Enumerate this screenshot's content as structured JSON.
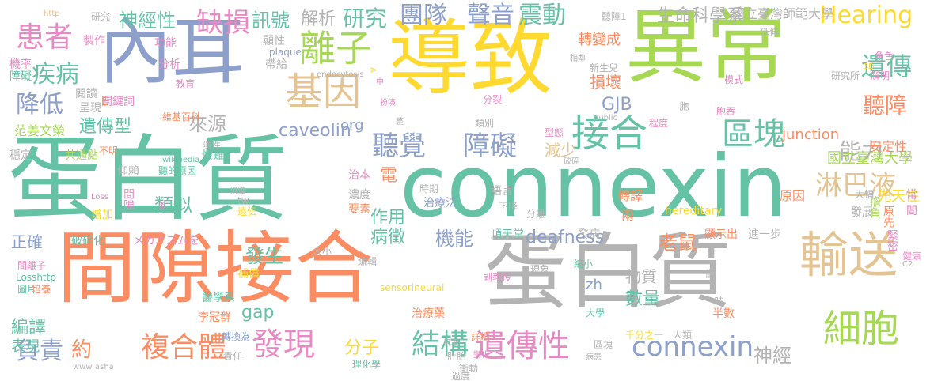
{
  "palette": {
    "green": "#66c2a5",
    "orange": "#fc8d62",
    "blue": "#8da0cb",
    "pink": "#e78ac3",
    "lime": "#a6d854",
    "yellow": "#ffd92f",
    "tan": "#e5c494",
    "gray": "#b3b3b3"
  },
  "words": [
    {
      "text": "蛋白質",
      "color": "green"
    },
    {
      "text": "connexin",
      "color": "green"
    },
    {
      "text": "蛋白質",
      "color": "gray"
    },
    {
      "text": "間隙接合",
      "color": "orange"
    },
    {
      "text": "導致",
      "color": "yellow"
    },
    {
      "text": "異常",
      "color": "lime"
    },
    {
      "text": "內耳",
      "color": "blue"
    },
    {
      "text": "輸送",
      "color": "tan"
    },
    {
      "text": "細胞",
      "color": "lime"
    },
    {
      "text": "接合",
      "color": "green"
    },
    {
      "text": "區塊",
      "color": "green"
    },
    {
      "text": "基因",
      "color": "tan"
    },
    {
      "text": "離子",
      "color": "lime"
    },
    {
      "text": "聽覺",
      "color": "blue"
    },
    {
      "text": "障礙",
      "color": "blue"
    },
    {
      "text": "發現",
      "color": "pink"
    },
    {
      "text": "結構",
      "color": "green"
    },
    {
      "text": "遺傳性",
      "color": "pink"
    },
    {
      "text": "複合體",
      "color": "orange"
    },
    {
      "text": "connexin",
      "color": "blue"
    },
    {
      "text": "患者",
      "color": "pink"
    },
    {
      "text": "缺損",
      "color": "pink"
    },
    {
      "text": "淋巴液",
      "color": "tan"
    },
    {
      "text": "Hearing",
      "color": "yellow"
    },
    {
      "text": "遺傳",
      "color": "green"
    },
    {
      "text": "聽障",
      "color": "orange"
    },
    {
      "text": "能力",
      "color": "gray"
    },
    {
      "text": "疾病",
      "color": "green"
    },
    {
      "text": "降低",
      "color": "blue"
    },
    {
      "text": "團隊",
      "color": "blue"
    },
    {
      "text": "聲音",
      "color": "blue"
    },
    {
      "text": "震動",
      "color": "green"
    },
    {
      "text": "研究",
      "color": "green"
    },
    {
      "text": "神經性",
      "color": "green"
    },
    {
      "text": "訊號",
      "color": "green"
    },
    {
      "text": "解析",
      "color": "gray"
    },
    {
      "text": "生命科學系",
      "color": "gray"
    },
    {
      "text": "來源",
      "color": "gray"
    },
    {
      "text": "遺傳型",
      "color": "green"
    },
    {
      "text": "caveolin",
      "color": "blue"
    },
    {
      "text": "GJB",
      "color": "blue"
    },
    {
      "text": "正確",
      "color": "blue"
    },
    {
      "text": "類似",
      "color": "green"
    },
    {
      "text": "負責",
      "color": "blue"
    },
    {
      "text": "約",
      "color": "orange"
    },
    {
      "text": "機能",
      "color": "blue"
    },
    {
      "text": "病徵",
      "color": "green"
    },
    {
      "text": "作用",
      "color": "green"
    },
    {
      "text": "分子",
      "color": "yellow"
    },
    {
      "text": "deafness",
      "color": "blue"
    },
    {
      "text": "老鼠",
      "color": "orange"
    },
    {
      "text": "神經",
      "color": "gray"
    },
    {
      "text": "數量",
      "color": "green"
    },
    {
      "text": "物質",
      "color": "gray"
    },
    {
      "text": "發生",
      "color": "green"
    },
    {
      "text": "gap",
      "color": "green"
    },
    {
      "text": "電",
      "color": "orange"
    },
    {
      "text": "junction",
      "color": "orange"
    },
    {
      "text": "轉變成",
      "color": "orange"
    },
    {
      "text": "損壞",
      "color": "orange"
    },
    {
      "text": "減少",
      "color": "tan"
    },
    {
      "text": "編譯",
      "color": "green"
    },
    {
      "text": "表現",
      "color": "green"
    },
    {
      "text": "org",
      "color": "blue"
    },
    {
      "text": "zh",
      "color": "blue"
    },
    {
      "text": "國立臺灣大學",
      "color": "lime"
    },
    {
      "text": "國立臺灣師範大學",
      "color": "gray"
    },
    {
      "text": "先天性",
      "color": "yellow"
    },
    {
      "text": "安定性",
      "color": "orange"
    },
    {
      "text": "轉譯",
      "color": "orange"
    },
    {
      "text": "兩",
      "color": "orange"
    },
    {
      "text": "原因",
      "color": "orange"
    },
    {
      "text": "hereditary",
      "color": "yellow"
    },
    {
      "text": "顯示出",
      "color": "orange"
    },
    {
      "text": "進一步",
      "color": "gray"
    },
    {
      "text": "擔負",
      "color": "lime"
    },
    {
      "text": "原先",
      "color": "orange"
    },
    {
      "text": "發展",
      "color": "gray"
    },
    {
      "text": "緊密",
      "color": "pink"
    },
    {
      "text": "順天堂",
      "color": "green"
    },
    {
      "text": "發病",
      "color": "gray"
    },
    {
      "text": "大學",
      "color": "green"
    },
    {
      "text": "李冠群",
      "color": "orange"
    },
    {
      "text": "醫學系",
      "color": "green"
    },
    {
      "text": "補償",
      "color": "yellow"
    },
    {
      "text": "治療藥",
      "color": "orange"
    },
    {
      "text": "治療法",
      "color": "blue"
    },
    {
      "text": "語言",
      "color": "gray"
    },
    {
      "text": "濃度",
      "color": "gray"
    },
    {
      "text": "要素",
      "color": "orange"
    },
    {
      "text": "治本",
      "color": "pink"
    },
    {
      "text": "聽的原因",
      "color": "green"
    },
    {
      "text": "wikipedia",
      "color": "green"
    },
    {
      "text": "メカニズムを",
      "color": "pink"
    },
    {
      "text": "破碎化",
      "color": "green"
    },
    {
      "text": "間隙",
      "color": "pink"
    },
    {
      "text": "增加",
      "color": "yellow"
    },
    {
      "text": "Loss",
      "color": "pink"
    },
    {
      "text": "仰賴",
      "color": "gray"
    },
    {
      "text": "共通點",
      "color": "lime"
    },
    {
      "text": "性難",
      "color": "green"
    },
    {
      "text": "隱性",
      "color": "gray"
    },
    {
      "text": "維基百科",
      "color": "orange"
    },
    {
      "text": "范姜文榮",
      "color": "lime"
    },
    {
      "text": "呈現",
      "color": "gray"
    },
    {
      "text": "關鍵詞",
      "color": "pink"
    },
    {
      "text": "閱讀",
      "color": "gray"
    },
    {
      "text": "教育",
      "color": "pink"
    },
    {
      "text": "機率",
      "color": "pink"
    },
    {
      "text": "障礙",
      "color": "green"
    },
    {
      "text": "分析",
      "color": "pink"
    },
    {
      "text": "功能",
      "color": "pink"
    },
    {
      "text": "製作",
      "color": "pink"
    },
    {
      "text": "http",
      "color": "tan"
    },
    {
      "text": "研究",
      "color": "gray"
    },
    {
      "text": "顯性",
      "color": "gray"
    },
    {
      "text": "帶給",
      "color": "gray"
    },
    {
      "text": "plaque",
      "color": "blue"
    },
    {
      "text": "endocytosis",
      "color": "gray"
    },
    {
      "text": "A",
      "color": "yellow"
    },
    {
      "text": "中",
      "color": "pink"
    },
    {
      "text": "扮演",
      "color": "pink"
    },
    {
      "text": "整",
      "color": "gray"
    },
    {
      "text": "分裂",
      "color": "pink"
    },
    {
      "text": "類別",
      "color": "gray"
    },
    {
      "text": "型態",
      "color": "pink"
    },
    {
      "text": "public",
      "color": "gray"
    },
    {
      "text": "程度",
      "color": "pink"
    },
    {
      "text": "胞",
      "color": "gray"
    },
    {
      "text": "胞吞",
      "color": "pink"
    },
    {
      "text": "模式",
      "color": "pink"
    },
    {
      "text": "研究所",
      "color": "gray"
    },
    {
      "text": "解明",
      "color": "pink"
    },
    {
      "text": "BD",
      "color": "yellow"
    },
    {
      "text": "角色",
      "color": "pink"
    },
    {
      "text": "延伸",
      "color": "gray"
    },
    {
      "text": "聽障1",
      "color": "gray"
    },
    {
      "text": "相鄰",
      "color": "gray"
    },
    {
      "text": "新生兒",
      "color": "gray"
    },
    {
      "text": "破碎",
      "color": "gray"
    },
    {
      "text": "時期",
      "color": "gray"
    },
    {
      "text": "下降",
      "color": "gray"
    },
    {
      "text": "分離",
      "color": "gray"
    },
    {
      "text": "大幅",
      "color": "gray"
    },
    {
      "text": "常",
      "color": "pink"
    },
    {
      "text": "間",
      "color": "pink"
    },
    {
      "text": "sensorineural",
      "color": "yellow"
    },
    {
      "text": "副教授",
      "color": "pink"
    },
    {
      "text": "現象",
      "color": "gray"
    },
    {
      "text": "縮小",
      "color": "green"
    },
    {
      "text": "僅",
      "color": "gray"
    },
    {
      "text": "時",
      "color": "gray"
    },
    {
      "text": "半數",
      "color": "orange"
    },
    {
      "text": "C2",
      "color": "gray"
    },
    {
      "text": "健康",
      "color": "pink"
    },
    {
      "text": "編輯",
      "color": "gray"
    },
    {
      "text": "大小",
      "color": "gray"
    },
    {
      "text": "遺伝",
      "color": "yellow"
    },
    {
      "text": "tw",
      "color": "gray"
    },
    {
      "text": "組織",
      "color": "gray"
    },
    {
      "text": "吾",
      "color": "pink"
    },
    {
      "text": "間離子",
      "color": "pink"
    },
    {
      "text": "Losshttp",
      "color": "green"
    },
    {
      "text": "圖片",
      "color": "green"
    },
    {
      "text": "培養",
      "color": "orange"
    },
    {
      "text": "轉換為",
      "color": "blue"
    },
    {
      "text": "責任",
      "color": "gray"
    },
    {
      "text": "理化學",
      "color": "green"
    },
    {
      "text": "日本",
      "color": "gray"
    },
    {
      "text": "肚胎",
      "color": "gray"
    },
    {
      "text": "詳細",
      "color": "orange"
    },
    {
      "text": "變化",
      "color": "pink"
    },
    {
      "text": "衝動",
      "color": "gray"
    },
    {
      "text": "過度",
      "color": "gray"
    },
    {
      "text": "千分之一",
      "color": "yellow"
    },
    {
      "text": "人類",
      "color": "gray"
    },
    {
      "text": "區塊",
      "color": "gray"
    },
    {
      "text": "病患",
      "color": "gray"
    },
    {
      "text": "www",
      "color": "gray"
    },
    {
      "text": "asha",
      "color": "gray"
    },
    {
      "text": "E",
      "color": "orange"
    },
    {
      "text": "不明",
      "color": "orange"
    },
    {
      "text": "穩定",
      "color": "gray"
    }
  ]
}
